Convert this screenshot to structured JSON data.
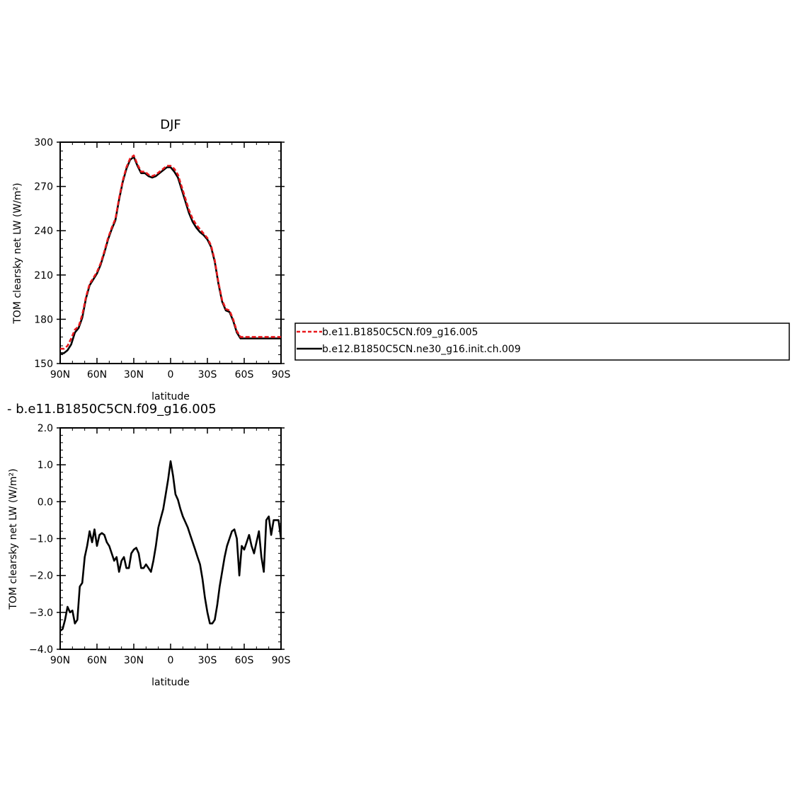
{
  "chart_data": [
    {
      "type": "line",
      "title": "DJF",
      "xlabel": "latitude",
      "ylabel": "TOM clearsky net LW (W/m²)",
      "xlim": [
        90,
        -90
      ],
      "ylim": [
        150,
        300
      ],
      "x_ticks": [
        {
          "value": 90,
          "label": "90N"
        },
        {
          "value": 60,
          "label": "60N"
        },
        {
          "value": 30,
          "label": "30N"
        },
        {
          "value": 0,
          "label": "0"
        },
        {
          "value": -30,
          "label": "30S"
        },
        {
          "value": -60,
          "label": "60S"
        },
        {
          "value": -90,
          "label": "90S"
        }
      ],
      "y_ticks": [
        {
          "value": 150,
          "label": "150"
        },
        {
          "value": 180,
          "label": "180"
        },
        {
          "value": 210,
          "label": "210"
        },
        {
          "value": 240,
          "label": "240"
        },
        {
          "value": 270,
          "label": "270"
        },
        {
          "value": 300,
          "label": "300"
        }
      ],
      "legend": {
        "placement": "right"
      },
      "series": [
        {
          "name": "b.e11.B1850C5CN.f09_g16.005",
          "color": "#e8191d",
          "style": "dashed",
          "x": [
            90,
            87,
            84,
            81,
            78,
            75,
            72,
            69,
            66,
            63,
            60,
            57,
            54,
            51,
            48,
            45,
            42,
            39,
            36,
            33,
            30,
            27,
            24,
            21,
            18,
            15,
            12,
            9,
            6,
            3,
            0,
            -3,
            -6,
            -9,
            -12,
            -15,
            -18,
            -21,
            -24,
            -27,
            -30,
            -33,
            -36,
            -39,
            -42,
            -45,
            -48,
            -51,
            -54,
            -57,
            -60,
            -63,
            -66,
            -69,
            -72,
            -75,
            -78,
            -81,
            -84,
            -87,
            -90
          ],
          "y": [
            160,
            160,
            162,
            167,
            173,
            175,
            183,
            195,
            204,
            208,
            212,
            218,
            226,
            235,
            242,
            248,
            262,
            274,
            283,
            289,
            291,
            285,
            280,
            280,
            278,
            277,
            278,
            280,
            282,
            284,
            284,
            282,
            278,
            270,
            262,
            254,
            248,
            244,
            241,
            238,
            235,
            230,
            220,
            205,
            193,
            187,
            186,
            180,
            172,
            168,
            168,
            168,
            168,
            168,
            168,
            168,
            168,
            168,
            168,
            168,
            168
          ]
        },
        {
          "name": "b.e12.B1850C5CN.ne30_g16.init.ch.009",
          "color": "#000000",
          "style": "solid",
          "x": [
            90,
            87,
            84,
            81,
            78,
            75,
            72,
            69,
            66,
            63,
            60,
            57,
            54,
            51,
            48,
            45,
            42,
            39,
            36,
            33,
            30,
            27,
            24,
            21,
            18,
            15,
            12,
            9,
            6,
            3,
            0,
            -3,
            -6,
            -9,
            -12,
            -15,
            -18,
            -21,
            -24,
            -27,
            -30,
            -33,
            -36,
            -39,
            -42,
            -45,
            -48,
            -51,
            -54,
            -57,
            -60,
            -63,
            -66,
            -69,
            -72,
            -75,
            -78,
            -81,
            -84,
            -87,
            -90
          ],
          "y": [
            157,
            157,
            159,
            163,
            171,
            174,
            181,
            194,
            203,
            207,
            211,
            217,
            225,
            234,
            241,
            247,
            261,
            273,
            282,
            288,
            290,
            284,
            279,
            279,
            277,
            276,
            277,
            279,
            281,
            283,
            283,
            280,
            276,
            268,
            260,
            252,
            246,
            242,
            239,
            237,
            234,
            229,
            219,
            204,
            192,
            186,
            185,
            179,
            171,
            167,
            167,
            167,
            167,
            167,
            167,
            167,
            167,
            167,
            167,
            167,
            167
          ]
        }
      ]
    },
    {
      "type": "line",
      "title": "- b.e11.B1850C5CN.f09_g16.005",
      "xlabel": "latitude",
      "ylabel": "TOM clearsky net LW (W/m²)",
      "xlim": [
        90,
        -90
      ],
      "ylim": [
        -4.0,
        2.0
      ],
      "x_ticks": [
        {
          "value": 90,
          "label": "90N"
        },
        {
          "value": 60,
          "label": "60N"
        },
        {
          "value": 30,
          "label": "30N"
        },
        {
          "value": 0,
          "label": "0"
        },
        {
          "value": -30,
          "label": "30S"
        },
        {
          "value": -60,
          "label": "60S"
        },
        {
          "value": -90,
          "label": "90S"
        }
      ],
      "y_ticks": [
        {
          "value": -4.0,
          "label": "−4.0"
        },
        {
          "value": -3.0,
          "label": "−3.0"
        },
        {
          "value": -2.0,
          "label": "−2.0"
        },
        {
          "value": -1.0,
          "label": "−1.0"
        },
        {
          "value": 0.0,
          "label": "0.0"
        },
        {
          "value": 1.0,
          "label": "1.0"
        },
        {
          "value": 2.0,
          "label": "2.0"
        }
      ],
      "series": [
        {
          "color": "#000000",
          "style": "solid",
          "x": [
            90,
            88,
            86,
            84,
            82,
            80,
            78,
            76,
            74,
            72,
            70,
            68,
            66,
            64,
            62,
            60,
            58,
            56,
            54,
            52,
            50,
            48,
            46,
            44,
            42,
            40,
            38,
            36,
            34,
            32,
            30,
            28,
            26,
            24,
            22,
            20,
            18,
            16,
            14,
            12,
            10,
            8,
            6,
            4,
            2,
            0,
            -2,
            -4,
            -6,
            -8,
            -10,
            -12,
            -14,
            -16,
            -18,
            -20,
            -22,
            -24,
            -26,
            -28,
            -30,
            -32,
            -34,
            -36,
            -38,
            -40,
            -42,
            -44,
            -46,
            -48,
            -50,
            -52,
            -54,
            -56,
            -58,
            -60,
            -62,
            -64,
            -66,
            -68,
            -70,
            -72,
            -74,
            -76,
            -78,
            -80,
            -82,
            -84,
            -86,
            -88,
            -90
          ],
          "y": [
            -3.5,
            -3.45,
            -3.2,
            -2.85,
            -3.0,
            -2.95,
            -3.3,
            -3.2,
            -2.3,
            -2.2,
            -1.5,
            -1.2,
            -0.8,
            -1.1,
            -0.75,
            -1.2,
            -0.9,
            -0.85,
            -0.9,
            -1.1,
            -1.2,
            -1.4,
            -1.6,
            -1.5,
            -1.9,
            -1.6,
            -1.5,
            -1.8,
            -1.8,
            -1.4,
            -1.3,
            -1.25,
            -1.4,
            -1.8,
            -1.8,
            -1.7,
            -1.8,
            -1.9,
            -1.6,
            -1.2,
            -0.7,
            -0.45,
            -0.2,
            0.2,
            0.6,
            1.1,
            0.7,
            0.2,
            0.05,
            -0.2,
            -0.4,
            -0.55,
            -0.7,
            -0.9,
            -1.1,
            -1.3,
            -1.5,
            -1.7,
            -2.1,
            -2.6,
            -3.0,
            -3.3,
            -3.3,
            -3.2,
            -2.8,
            -2.3,
            -1.9,
            -1.5,
            -1.2,
            -1.0,
            -0.8,
            -0.75,
            -1.0,
            -2.0,
            -1.2,
            -1.3,
            -1.1,
            -0.9,
            -1.2,
            -1.4,
            -1.1,
            -0.8,
            -1.5,
            -1.9,
            -0.5,
            -0.4,
            -0.9,
            -0.5,
            -0.5,
            -0.5,
            -1.0
          ]
        }
      ]
    }
  ]
}
